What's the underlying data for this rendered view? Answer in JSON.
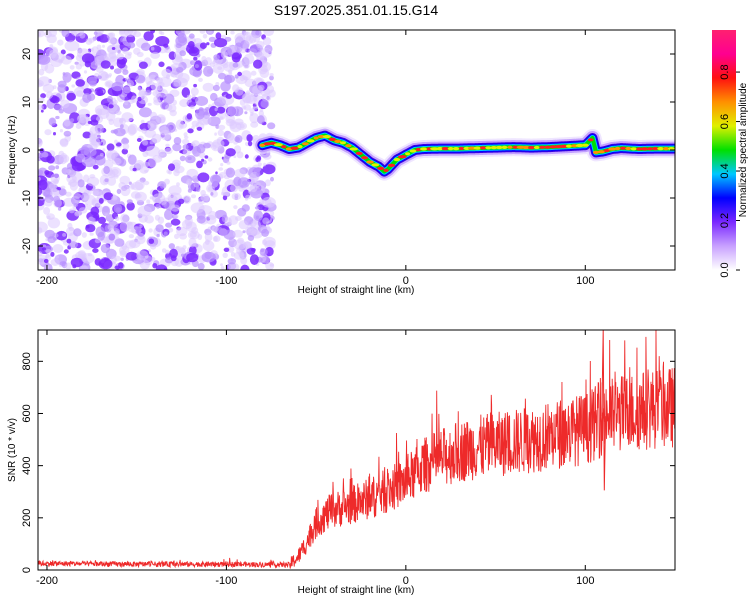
{
  "title": "S197.2025.351.01.15.G14",
  "chart_data": [
    {
      "type": "heatmap",
      "xlabel": "Height of straight line (km)",
      "ylabel": "Frequency (Hz)",
      "xlim": [
        -205,
        150
      ],
      "ylim": [
        -25,
        25
      ],
      "xticks": [
        "-200",
        "-100",
        "0",
        "100"
      ],
      "xtick_values": [
        -200,
        -100,
        0,
        100
      ],
      "yticks": [
        "-20",
        "-10",
        "0",
        "10",
        "20"
      ],
      "ytick_values": [
        -20,
        -10,
        0,
        10,
        20
      ],
      "noise_region_x": [
        -205,
        -80
      ],
      "ridge": {
        "x": [
          -80,
          -75,
          -70,
          -65,
          -60,
          -55,
          -50,
          -45,
          -40,
          -35,
          -30,
          -25,
          -20,
          -15,
          -12,
          -10,
          -5,
          0,
          5,
          10,
          20,
          30,
          40,
          50,
          60,
          70,
          80,
          90,
          100,
          104,
          106,
          110,
          115,
          120,
          130,
          140,
          150
        ],
        "frequency": [
          1.0,
          1.5,
          1.0,
          0.2,
          0.5,
          1.5,
          2.5,
          3.0,
          2.0,
          1.5,
          0.5,
          -1.0,
          -2.5,
          -3.5,
          -4.5,
          -4.0,
          -2.0,
          -1.0,
          0.0,
          0.2,
          0.3,
          0.3,
          0.4,
          0.5,
          0.6,
          0.5,
          0.6,
          0.8,
          1.0,
          2.5,
          -0.5,
          -0.3,
          0.2,
          0.4,
          0.2,
          0.3,
          0.3
        ]
      },
      "colorbar": {
        "label": "Normalized spectral amplitude",
        "range": [
          0,
          0.97
        ],
        "ticks": [
          "0.0",
          "0.2",
          "0.4",
          "0.6",
          "0.8"
        ],
        "tick_values": [
          0.0,
          0.2,
          0.4,
          0.6,
          0.8
        ],
        "colors": [
          "#ffffff",
          "#c8a0ff",
          "#7a28ff",
          "#0000ff",
          "#00c8ff",
          "#00e000",
          "#e0f000",
          "#ff9000",
          "#ff1010",
          "#ff0090",
          "#ff2070"
        ]
      }
    },
    {
      "type": "line",
      "xlabel": "Height of straight line (km)",
      "ylabel": "SNR (10 * v/v)",
      "xlim": [
        -205,
        150
      ],
      "ylim": [
        0,
        920
      ],
      "xticks": [
        "-200",
        "-100",
        "0",
        "100"
      ],
      "xtick_values": [
        -200,
        -100,
        0,
        100
      ],
      "yticks": [
        "0",
        "200",
        "400",
        "600",
        "800"
      ],
      "ytick_values": [
        0,
        200,
        400,
        600,
        800
      ],
      "color": "#ee2a2a",
      "trend": {
        "x": [
          -205,
          -150,
          -100,
          -65,
          -60,
          -55,
          -50,
          -45,
          -40,
          -30,
          -20,
          -10,
          0,
          10,
          20,
          30,
          40,
          50,
          60,
          70,
          80,
          90,
          100,
          105,
          109,
          110,
          111,
          115,
          120,
          130,
          140,
          150
        ],
        "y": [
          25,
          22,
          22,
          20,
          50,
          110,
          180,
          210,
          230,
          250,
          275,
          305,
          340,
          400,
          430,
          455,
          470,
          480,
          490,
          500,
          515,
          530,
          540,
          560,
          580,
          600,
          600,
          590,
          600,
          610,
          620,
          625
        ]
      },
      "spikes": [
        {
          "x": 110,
          "y": 920
        },
        {
          "x": 110.6,
          "y": 305
        }
      ]
    }
  ]
}
